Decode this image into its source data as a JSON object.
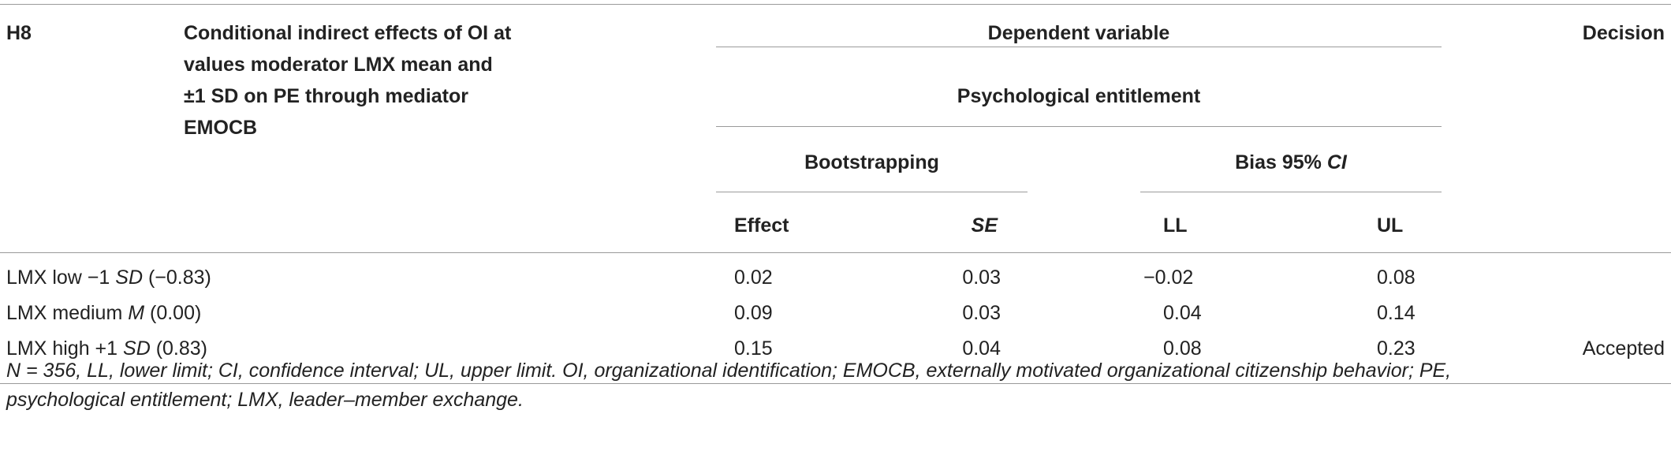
{
  "header": {
    "hypothesis": "H8",
    "description_lines": [
      "Conditional indirect effects of OI at",
      "values moderator LMX mean and",
      "±1 SD on PE through mediator",
      "EMOCB"
    ],
    "dependent_variable": "Dependent variable",
    "psychological_entitlement": "Psychological entitlement",
    "bootstrapping": "Bootstrapping",
    "bias_ci_prefix": "Bias 95% ",
    "bias_ci_italic": "CI",
    "decision": "Decision",
    "col_effect": "Effect",
    "col_se": "SE",
    "col_ll": "LL",
    "col_ul": "UL"
  },
  "rows": [
    {
      "pre": "LMX low −1 ",
      "ital": "SD",
      "post": " (−0.83)",
      "effect": "0.02",
      "se": "0.03",
      "ll": "−0.02",
      "ul": "0.08",
      "decision": ""
    },
    {
      "pre": "LMX medium ",
      "ital": "M",
      "post": " (0.00)",
      "effect": "0.09",
      "se": "0.03",
      "ll": "0.04",
      "ul": "0.14",
      "decision": ""
    },
    {
      "pre": "LMX high +1 ",
      "ital": "SD",
      "post": " (0.83)",
      "effect": "0.15",
      "se": "0.04",
      "ll": "0.08",
      "ul": "0.23",
      "decision": "Accepted"
    }
  ],
  "footnote": {
    "line1": "N = 356, LL, lower limit; CI, confidence interval; UL, upper limit. OI, organizational identification; EMOCB, externally motivated organizational citizenship behavior; PE,",
    "line2": "psychological entitlement; LMX, leader–member exchange."
  }
}
